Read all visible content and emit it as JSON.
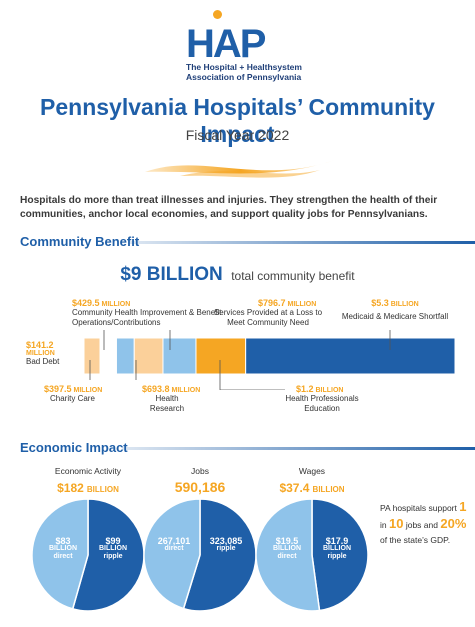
{
  "logo": {
    "letters": "HAP",
    "line1": "The Hospital + Healthsystem",
    "line2": "Association of Pennsylvania"
  },
  "title": "Pennsylvania Hospitals’ Community Impact",
  "subtitle": "Fiscal Year 2022",
  "intro": "Hospitals do more than treat illnesses and injuries. They strengthen the health of their communities, anchor local economies, and support quality jobs for Pennsylvanians.",
  "colors": {
    "primary_blue": "#1f5fa8",
    "light_blue": "#8fc3ea",
    "accent_orange": "#f5a623",
    "pale_orange": "#fbd09a"
  },
  "community_benefit": {
    "heading": "Community Benefit",
    "total_amount": "$9 BILLION",
    "total_label": "total community benefit",
    "labels": [
      {
        "amount": "$141.2",
        "unit": "MILLION",
        "text": "Bad Debt"
      },
      {
        "amount": "$397.5",
        "unit": "MILLION",
        "text": "Charity Care"
      },
      {
        "amount": "$429.5",
        "unit": "MILLION",
        "text": "Community Health Improvement & Benefit Operations/Contributions"
      },
      {
        "amount": "$693.8",
        "unit": "MILLION",
        "text": "Health Research"
      },
      {
        "amount": "$796.7",
        "unit": "MILLION",
        "text": "Services Provided at a Loss to Meet Community Need"
      },
      {
        "amount": "$1.2",
        "unit": "BILLION",
        "text": "Health Professionals Education"
      },
      {
        "amount": "$5.3",
        "unit": "BILLION",
        "text": "Medicaid & Medicare Shortfall"
      }
    ]
  },
  "economic_impact": {
    "heading": "Economic Impact",
    "pies": [
      {
        "title": "Economic Activity",
        "amount": "$182",
        "unit": "BILLION",
        "direct": {
          "value": "$83",
          "sub": "BILLION direct"
        },
        "ripple": {
          "value": "$99",
          "sub": "BILLION ripple"
        }
      },
      {
        "title": "Jobs",
        "amount": "590,186",
        "unit": "",
        "direct": {
          "value": "267,101",
          "sub": "direct"
        },
        "ripple": {
          "value": "323,085",
          "sub": "ripple"
        }
      },
      {
        "title": "Wages",
        "amount": "$37.4",
        "unit": "BILLION",
        "direct": {
          "value": "$19.5",
          "sub": "BILLION direct"
        },
        "ripple": {
          "value": "$17.9",
          "sub": "BILLION ripple"
        }
      }
    ],
    "fact": {
      "t1": "PA hospitals support",
      "n1": "1",
      "t2": "in",
      "n2": "10",
      "t3": "jobs and",
      "n3": "20%",
      "t4": "of the state’s GDP."
    }
  },
  "chart_data": [
    {
      "type": "bar",
      "orientation": "horizontal-stacked",
      "title": "$9 BILLION total community benefit",
      "unit": "million USD",
      "categories": [
        "Bad Debt",
        "Charity Care",
        "Community Health Improvement & Benefit Operations/Contributions",
        "Health Research",
        "Services Provided at a Loss to Meet Community Need",
        "Health Professionals Education",
        "Medicaid & Medicare Shortfall"
      ],
      "values": [
        141.2,
        397.5,
        429.5,
        693.8,
        796.7,
        1200,
        5300
      ],
      "colors": [
        "#fbd09a",
        "#ffffff",
        "#8fc3ea",
        "#fbd09a",
        "#8fc3ea",
        "#f5a623",
        "#1f5fa8"
      ]
    },
    {
      "type": "pie",
      "title": "Economic Activity",
      "unit": "billion USD",
      "categories": [
        "direct",
        "ripple"
      ],
      "values": [
        83,
        99
      ]
    },
    {
      "type": "pie",
      "title": "Jobs",
      "categories": [
        "direct",
        "ripple"
      ],
      "values": [
        267101,
        323085
      ]
    },
    {
      "type": "pie",
      "title": "Wages",
      "unit": "billion USD",
      "categories": [
        "direct",
        "ripple"
      ],
      "values": [
        19.5,
        17.9
      ]
    }
  ]
}
